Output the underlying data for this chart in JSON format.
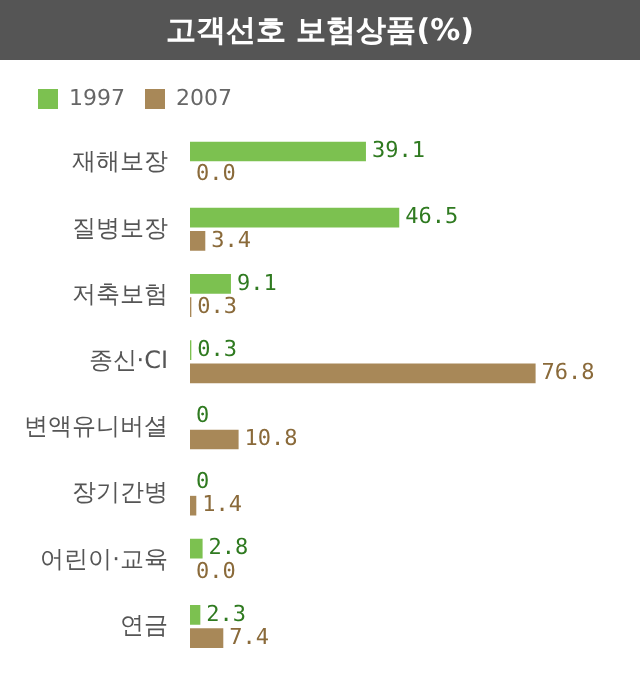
{
  "chart_data": {
    "type": "bar",
    "orientation": "horizontal",
    "title": "고객선호 보험상품(%)",
    "categories": [
      "재해보장",
      "질병보장",
      "저축보험",
      "종신·CI",
      "변액유니버셜",
      "장기간병",
      "어린이·교육",
      "연금"
    ],
    "series": [
      {
        "name": "1997",
        "color": "#7cc150",
        "values": [
          39.1,
          46.5,
          9.1,
          0.3,
          0,
          0,
          2.8,
          2.3
        ],
        "value_labels": [
          "39.1",
          "46.5",
          "9.1",
          "0.3",
          "0",
          "0",
          "2.8",
          "2.3"
        ]
      },
      {
        "name": "2007",
        "color": "#a88858",
        "values": [
          0.0,
          3.4,
          0.3,
          76.8,
          10.8,
          1.4,
          0.0,
          7.4
        ],
        "value_labels": [
          "0.0",
          "3.4",
          "0.3",
          "76.8",
          "10.8",
          "1.4",
          "0.0",
          "7.4"
        ]
      }
    ],
    "grid": false,
    "legend": "top left",
    "tick_labels": "y"
  }
}
